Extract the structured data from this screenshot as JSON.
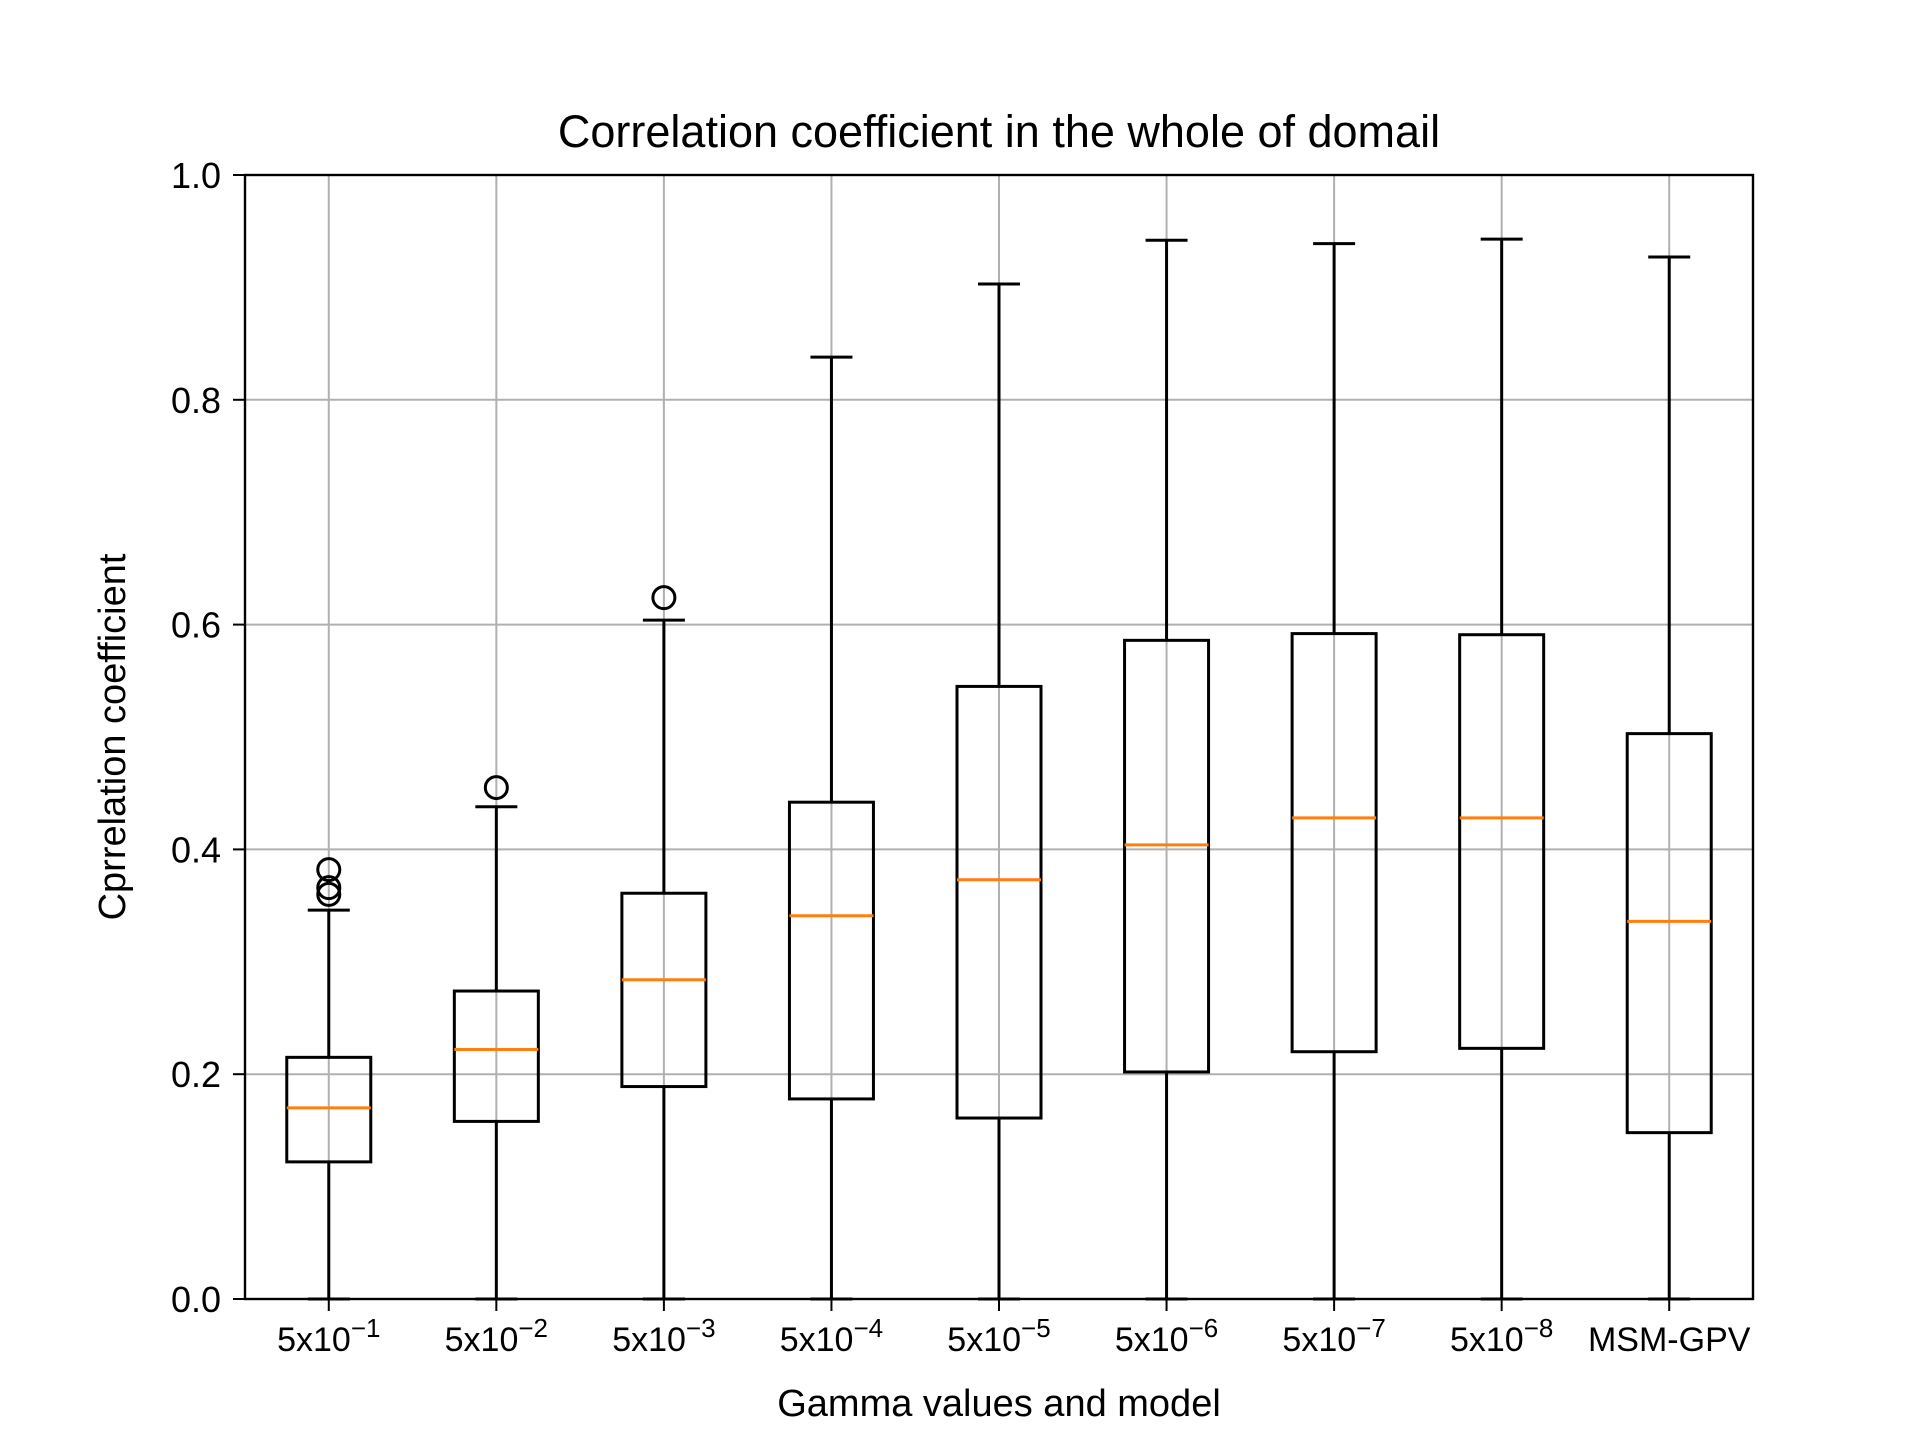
{
  "chart_data": {
    "type": "box",
    "title": "Correlation coefficient in the whole of domail",
    "xlabel": "Gamma values and model",
    "ylabel": "Cprrelation coefficient",
    "ylim": [
      0.0,
      1.0
    ],
    "yticks": [
      0.0,
      0.2,
      0.4,
      0.6,
      0.8,
      1.0
    ],
    "ytick_labels": [
      "0.0",
      "0.2",
      "0.4",
      "0.6",
      "0.8",
      "1.0"
    ],
    "grid": true,
    "colors": {
      "median": "#ff7f0e",
      "box": "#000000",
      "grid": "#b0b0b0"
    },
    "categories": [
      {
        "base": "5x10",
        "exp": "−1"
      },
      {
        "base": "5x10",
        "exp": "−2"
      },
      {
        "base": "5x10",
        "exp": "−3"
      },
      {
        "base": "5x10",
        "exp": "−4"
      },
      {
        "base": "5x10",
        "exp": "−5"
      },
      {
        "base": "5x10",
        "exp": "−6"
      },
      {
        "base": "5x10",
        "exp": "−7"
      },
      {
        "base": "5x10",
        "exp": "−8"
      },
      {
        "base": "MSM-GPV",
        "exp": ""
      }
    ],
    "boxes": [
      {
        "whisker_low": 0.0,
        "q1": 0.122,
        "median": 0.17,
        "q3": 0.215,
        "whisker_high": 0.346,
        "outliers": [
          0.36,
          0.366,
          0.382
        ]
      },
      {
        "whisker_low": 0.0,
        "q1": 0.158,
        "median": 0.222,
        "q3": 0.274,
        "whisker_high": 0.438,
        "outliers": [
          0.455
        ]
      },
      {
        "whisker_low": 0.0,
        "q1": 0.189,
        "median": 0.284,
        "q3": 0.361,
        "whisker_high": 0.604,
        "outliers": [
          0.624
        ]
      },
      {
        "whisker_low": 0.0,
        "q1": 0.178,
        "median": 0.341,
        "q3": 0.442,
        "whisker_high": 0.838,
        "outliers": []
      },
      {
        "whisker_low": 0.0,
        "q1": 0.161,
        "median": 0.373,
        "q3": 0.545,
        "whisker_high": 0.903,
        "outliers": []
      },
      {
        "whisker_low": 0.0,
        "q1": 0.202,
        "median": 0.404,
        "q3": 0.586,
        "whisker_high": 0.942,
        "outliers": []
      },
      {
        "whisker_low": 0.0,
        "q1": 0.22,
        "median": 0.428,
        "q3": 0.592,
        "whisker_high": 0.939,
        "outliers": []
      },
      {
        "whisker_low": 0.0,
        "q1": 0.223,
        "median": 0.428,
        "q3": 0.591,
        "whisker_high": 0.943,
        "outliers": []
      },
      {
        "whisker_low": 0.0,
        "q1": 0.148,
        "median": 0.336,
        "q3": 0.503,
        "whisker_high": 0.927,
        "outliers": []
      }
    ]
  }
}
